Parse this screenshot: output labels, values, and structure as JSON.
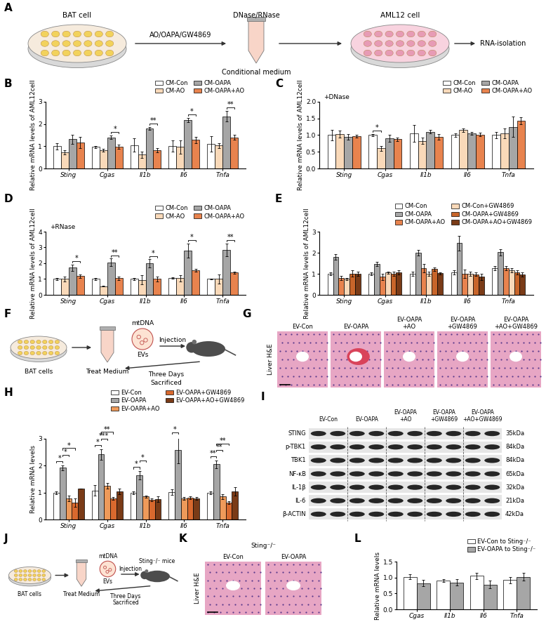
{
  "chart_data": [
    {
      "panel": "B",
      "type": "bar",
      "ylabel": "Relative mRNA levels of AML12cell",
      "categories": [
        "Sting",
        "Cgas",
        "Il1b",
        "Il6",
        "Tnfa"
      ],
      "series": [
        {
          "name": "CM-Con",
          "color": "#FFFFFF",
          "values": [
            1.0,
            0.97,
            1.05,
            1.0,
            1.1
          ],
          "errors": [
            0.15,
            0.05,
            0.3,
            0.25,
            0.35
          ]
        },
        {
          "name": "CM-AO",
          "color": "#F9D9B9",
          "values": [
            0.72,
            0.82,
            0.62,
            0.97,
            1.03
          ],
          "errors": [
            0.1,
            0.05,
            0.15,
            0.3,
            0.1
          ]
        },
        {
          "name": "CM-OAPA",
          "color": "#A6A6A6",
          "values": [
            1.32,
            1.4,
            1.8,
            2.18,
            2.35
          ],
          "errors": [
            0.2,
            0.08,
            0.07,
            0.1,
            0.25
          ]
        },
        {
          "name": "CM-OAPA+AO",
          "color": "#E8834E",
          "values": [
            1.17,
            0.97,
            0.82,
            1.28,
            1.4
          ],
          "errors": [
            0.25,
            0.1,
            0.1,
            0.15,
            0.1
          ]
        }
      ],
      "ylim": [
        0,
        3
      ],
      "yticks": [
        0,
        1,
        2,
        3
      ],
      "legend": "upper right",
      "significance": [
        {
          "category": "Cgas",
          "between": [
            "CM-OAPA",
            "CM-OAPA+AO"
          ],
          "label": "*"
        },
        {
          "category": "Il1b",
          "between": [
            "CM-OAPA",
            "CM-OAPA+AO"
          ],
          "label": "**"
        },
        {
          "category": "Il6",
          "between": [
            "CM-OAPA",
            "CM-OAPA+AO"
          ],
          "label": "*"
        },
        {
          "category": "Tnfa",
          "between": [
            "CM-OAPA",
            "CM-OAPA+AO"
          ],
          "label": "**"
        }
      ]
    },
    {
      "panel": "C",
      "type": "bar",
      "ylabel": "Relative mRNA levels of AML12cell",
      "annotation": "+DNase",
      "categories": [
        "Sting",
        "Cgas",
        "Il1b",
        "Il6",
        "Tnfa"
      ],
      "series": [
        {
          "name": "CM-Con",
          "color": "#FFFFFF",
          "values": [
            1.0,
            1.0,
            1.05,
            1.0,
            1.0
          ],
          "errors": [
            0.15,
            0.03,
            0.25,
            0.05,
            0.1
          ]
        },
        {
          "name": "CM-AO",
          "color": "#F9D9B9",
          "values": [
            1.03,
            0.6,
            0.83,
            1.15,
            1.05
          ],
          "errors": [
            0.1,
            0.08,
            0.1,
            0.05,
            0.15
          ]
        },
        {
          "name": "CM-OAPA",
          "color": "#A6A6A6",
          "values": [
            0.95,
            0.9,
            1.1,
            1.05,
            1.25
          ],
          "errors": [
            0.08,
            0.1,
            0.05,
            0.05,
            0.3
          ]
        },
        {
          "name": "CM-OAPA+AO",
          "color": "#E8834E",
          "values": [
            0.97,
            0.88,
            0.95,
            1.02,
            1.43
          ],
          "errors": [
            0.05,
            0.05,
            0.08,
            0.05,
            0.1
          ]
        }
      ],
      "ylim": [
        0,
        2
      ],
      "yticks": [
        {
          "value": 0,
          "label": "0.0"
        },
        0.5,
        {
          "value": 1,
          "label": "1.0"
        },
        1.5,
        {
          "value": 2,
          "label": "2.0"
        }
      ],
      "legend": "upper right",
      "significance": [
        {
          "category": "Cgas",
          "between": [
            "CM-Con",
            "CM-AO"
          ],
          "label": "*"
        }
      ]
    },
    {
      "panel": "D",
      "type": "bar",
      "ylabel": "Relative mRNA levels of AML12cell",
      "annotation": "+RNase",
      "categories": [
        "Sting",
        "Cgas",
        "Il1b",
        "Il6",
        "Tnfa"
      ],
      "series": [
        {
          "name": "CM-Con",
          "color": "#FFFFFF",
          "values": [
            1.0,
            1.0,
            1.0,
            1.05,
            1.0
          ],
          "errors": [
            0.08,
            0.05,
            0.05,
            0.05,
            0.03
          ]
        },
        {
          "name": "CM-AO",
          "color": "#F9D9B9",
          "values": [
            1.0,
            0.55,
            0.95,
            1.05,
            1.0
          ],
          "errors": [
            0.15,
            0.03,
            0.3,
            0.2,
            0.3
          ]
        },
        {
          "name": "CM-OAPA",
          "color": "#A6A6A6",
          "values": [
            1.72,
            2.05,
            2.0,
            2.8,
            2.85
          ],
          "errors": [
            0.2,
            0.25,
            0.25,
            0.45,
            0.4
          ]
        },
        {
          "name": "CM-OAPA+AO",
          "color": "#E8834E",
          "values": [
            1.18,
            1.05,
            1.0,
            1.55,
            1.4
          ],
          "errors": [
            0.1,
            0.1,
            0.15,
            0.1,
            0.05
          ]
        }
      ],
      "ylim": [
        0,
        4
      ],
      "yticks": [
        0,
        1,
        2,
        3,
        4
      ],
      "legend": "upper right",
      "significance": [
        {
          "category": "Sting",
          "between": [
            "CM-OAPA",
            "CM-OAPA+AO"
          ],
          "label": "*"
        },
        {
          "category": "Cgas",
          "between": [
            "CM-OAPA",
            "CM-OAPA+AO"
          ],
          "label": "**"
        },
        {
          "category": "Il1b",
          "between": [
            "CM-OAPA",
            "CM-OAPA+AO"
          ],
          "label": "*"
        },
        {
          "category": "Il6",
          "between": [
            "CM-OAPA",
            "CM-OAPA+AO"
          ],
          "label": "*"
        },
        {
          "category": "Tnfa",
          "between": [
            "CM-OAPA",
            "CM-OAPA+AO"
          ],
          "label": "**"
        }
      ]
    },
    {
      "panel": "E",
      "type": "bar",
      "ylabel": "Relative mRNA levels of AML12cell",
      "categories": [
        "Sting",
        "Cgas",
        "Il1b",
        "Il6",
        "Tnfa"
      ],
      "series": [
        {
          "name": "CM-Con",
          "color": "#FFFFFF",
          "values": [
            1.0,
            1.0,
            1.0,
            1.05,
            1.25
          ],
          "errors": [
            0.08,
            0.08,
            0.1,
            0.1,
            0.1
          ]
        },
        {
          "name": "CM-OAPA",
          "color": "#A6A6A6",
          "values": [
            1.8,
            1.45,
            2.0,
            2.45,
            2.02
          ],
          "errors": [
            0.12,
            0.1,
            0.12,
            0.35,
            0.15
          ]
        },
        {
          "name": "CM-OAPA+AO",
          "color": "#E8834E",
          "values": [
            0.8,
            0.85,
            1.25,
            1.0,
            1.25
          ],
          "errors": [
            0.1,
            0.15,
            0.2,
            0.2,
            0.1
          ]
        },
        {
          "name": "CM-Con+GW4869",
          "color": "#F9D9B9",
          "values": [
            0.75,
            1.05,
            1.0,
            1.0,
            1.15
          ],
          "errors": [
            0.05,
            0.05,
            0.1,
            0.1,
            0.1
          ]
        },
        {
          "name": "CM-OAPA+GW4869",
          "color": "#C8652A",
          "values": [
            1.0,
            1.0,
            1.22,
            0.98,
            1.05
          ],
          "errors": [
            0.15,
            0.1,
            0.08,
            0.08,
            0.1
          ]
        },
        {
          "name": "CM-OAPA+AO+GW4869",
          "color": "#7A3B17",
          "values": [
            1.0,
            1.08,
            1.02,
            0.85,
            0.95
          ],
          "errors": [
            0.1,
            0.1,
            0.05,
            0.15,
            0.1
          ]
        }
      ],
      "ylim": [
        0,
        3
      ],
      "yticks": [
        0,
        1,
        2,
        3
      ],
      "legend": "upper right",
      "significance": []
    },
    {
      "panel": "H",
      "type": "bar",
      "ylabel": "Relative mRNA levels",
      "categories": [
        "Sting",
        "Cgas",
        "Il1b",
        "Il6",
        "Tnfa"
      ],
      "series": [
        {
          "name": "EV-Con",
          "color": "#FFFFFF",
          "values": [
            1.0,
            1.08,
            1.0,
            1.02,
            1.0
          ],
          "errors": [
            0.05,
            0.2,
            0.05,
            0.1,
            0.05
          ]
        },
        {
          "name": "EV-OAPA",
          "color": "#A6A6A6",
          "values": [
            1.92,
            2.42,
            1.65,
            2.58,
            2.05
          ],
          "errors": [
            0.1,
            0.2,
            0.15,
            0.5,
            0.15
          ]
        },
        {
          "name": "EV-OAPA+AO",
          "color": "#EE9A5A",
          "values": [
            0.78,
            1.25,
            0.85,
            0.78,
            0.85
          ],
          "errors": [
            0.1,
            0.1,
            0.05,
            0.05,
            0.1
          ]
        },
        {
          "name": "EV-OAPA+GW4869",
          "color": "#D9692E",
          "values": [
            0.62,
            0.78,
            0.72,
            0.8,
            0.62
          ],
          "errors": [
            0.15,
            0.05,
            0.05,
            0.05,
            0.05
          ]
        },
        {
          "name": "EV-OAPA+AO+GW4869",
          "color": "#7A3B17",
          "values": [
            1.15,
            1.05,
            0.75,
            0.78,
            1.05
          ],
          "errors": [
            0.0,
            0.1,
            0.1,
            0.05,
            0.15
          ]
        }
      ],
      "ylim": [
        0,
        3
      ],
      "yticks": [
        0,
        1,
        2,
        3
      ],
      "legend": "upper right",
      "significance": [
        {
          "category": "Sting",
          "between": [
            "EV-Con",
            "EV-OAPA"
          ],
          "label": "*"
        },
        {
          "category": "Sting",
          "between": [
            "EV-OAPA",
            "EV-OAPA+AO"
          ],
          "label": "*"
        },
        {
          "category": "Sting",
          "between": [
            "EV-OAPA",
            "EV-OAPA+GW4869"
          ],
          "label": "*"
        },
        {
          "category": "Cgas",
          "between": [
            "EV-Con",
            "EV-OAPA"
          ],
          "label": "*"
        },
        {
          "category": "Cgas",
          "between": [
            "EV-OAPA",
            "EV-OAPA+AO"
          ],
          "label": "***"
        },
        {
          "category": "Cgas",
          "between": [
            "EV-OAPA",
            "EV-OAPA+GW4869"
          ],
          "label": "**"
        },
        {
          "category": "Il1b",
          "between": [
            "EV-Con",
            "EV-OAPA"
          ],
          "label": "*"
        },
        {
          "category": "Il1b",
          "between": [
            "EV-OAPA",
            "EV-OAPA+AO"
          ],
          "label": "*"
        },
        {
          "category": "Il6",
          "between": [
            "EV-Con",
            "EV-OAPA"
          ],
          "label": "*"
        },
        {
          "category": "Tnfa",
          "between": [
            "EV-Con",
            "EV-OAPA"
          ],
          "label": "**"
        },
        {
          "category": "Tnfa",
          "between": [
            "EV-OAPA",
            "EV-OAPA+AO"
          ],
          "label": "**"
        },
        {
          "category": "Tnfa",
          "between": [
            "EV-OAPA",
            "EV-OAPA+GW4869"
          ],
          "label": "**"
        }
      ]
    },
    {
      "panel": "L",
      "type": "bar",
      "ylabel": "Relative mRNA levels",
      "categories": [
        "Cgas",
        "Il1b",
        "Il6",
        "Tnfa"
      ],
      "series": [
        {
          "name": "EV-Con to Sting⁻/⁻",
          "color": "#FFFFFF",
          "values": [
            1.02,
            0.9,
            1.05,
            0.92
          ],
          "errors": [
            0.08,
            0.05,
            0.1,
            0.1
          ]
        },
        {
          "name": "EV-OAPA to Sting⁻/⁻",
          "color": "#A6A6A6",
          "values": [
            0.82,
            0.84,
            0.78,
            1.02
          ],
          "errors": [
            0.1,
            0.1,
            0.12,
            0.12
          ]
        }
      ],
      "ylim": [
        0,
        1.5
      ],
      "yticks": [
        {
          "value": 0,
          "label": "0.0"
        },
        0.5,
        {
          "value": 1,
          "label": "1.0"
        },
        1.5
      ],
      "legend": "upper right",
      "significance": []
    }
  ],
  "schematics": [
    {
      "panel": "A",
      "source": "BAT cell",
      "treatment": "AO/OAPA/GW4869",
      "enzyme": "DNase/RNase",
      "medium": "Conditional medium",
      "target": "AML12 cell",
      "output": "RNA-isolation"
    },
    {
      "panel": "F",
      "source": "BAT cells",
      "medium": "Treat Medium",
      "cargo": "mtDNA",
      "vesicle": "EVs",
      "step": "Injection",
      "duration": "Three Days",
      "end": "Sacrificed"
    },
    {
      "panel": "J",
      "source": "BAT cells",
      "medium": "Treat Medium",
      "cargo": "mtDNA",
      "vesicle": "EVs",
      "step": "Injection",
      "duration": "Three Days",
      "end": "Sacrificed",
      "host": "Sting⁻/⁻ mice"
    }
  ],
  "histology": [
    {
      "panel": "G",
      "ylabel": "Liver H&E",
      "columns": [
        [
          "EV-Con"
        ],
        [
          "EV-OAPA"
        ],
        [
          "EV-OAPA",
          "+AO"
        ],
        [
          "EV-OAPA",
          "+GW4869"
        ],
        [
          "EV-OAPA",
          "+AO+GW4869"
        ]
      ]
    },
    {
      "panel": "K",
      "ylabel": "Liver H&E",
      "title": "Sting⁻/⁻",
      "columns": [
        [
          "EV-Con"
        ],
        [
          "EV-OAPA"
        ]
      ]
    }
  ],
  "western_blot": {
    "panel": "I",
    "groups": [
      [
        "EV-Con"
      ],
      [
        "EV-OAPA"
      ],
      [
        "EV-OAPA",
        "+AO"
      ],
      [
        "EV-OAPA",
        "+GW4869"
      ],
      [
        "EV-OAPA",
        "+AO+GW4869"
      ]
    ],
    "rows": [
      {
        "name": "STING",
        "size": "35kDa"
      },
      {
        "name": "p-TBK1",
        "size": "84kDa"
      },
      {
        "name": "TBK1",
        "size": "84kDa"
      },
      {
        "name": "NF-κB",
        "size": "65kDa"
      },
      {
        "name": "IL-1β",
        "size": "32kDa"
      },
      {
        "name": "IL-6",
        "size": "21kDa"
      },
      {
        "name": "β-ACTIN",
        "size": "42kDa"
      }
    ]
  }
}
